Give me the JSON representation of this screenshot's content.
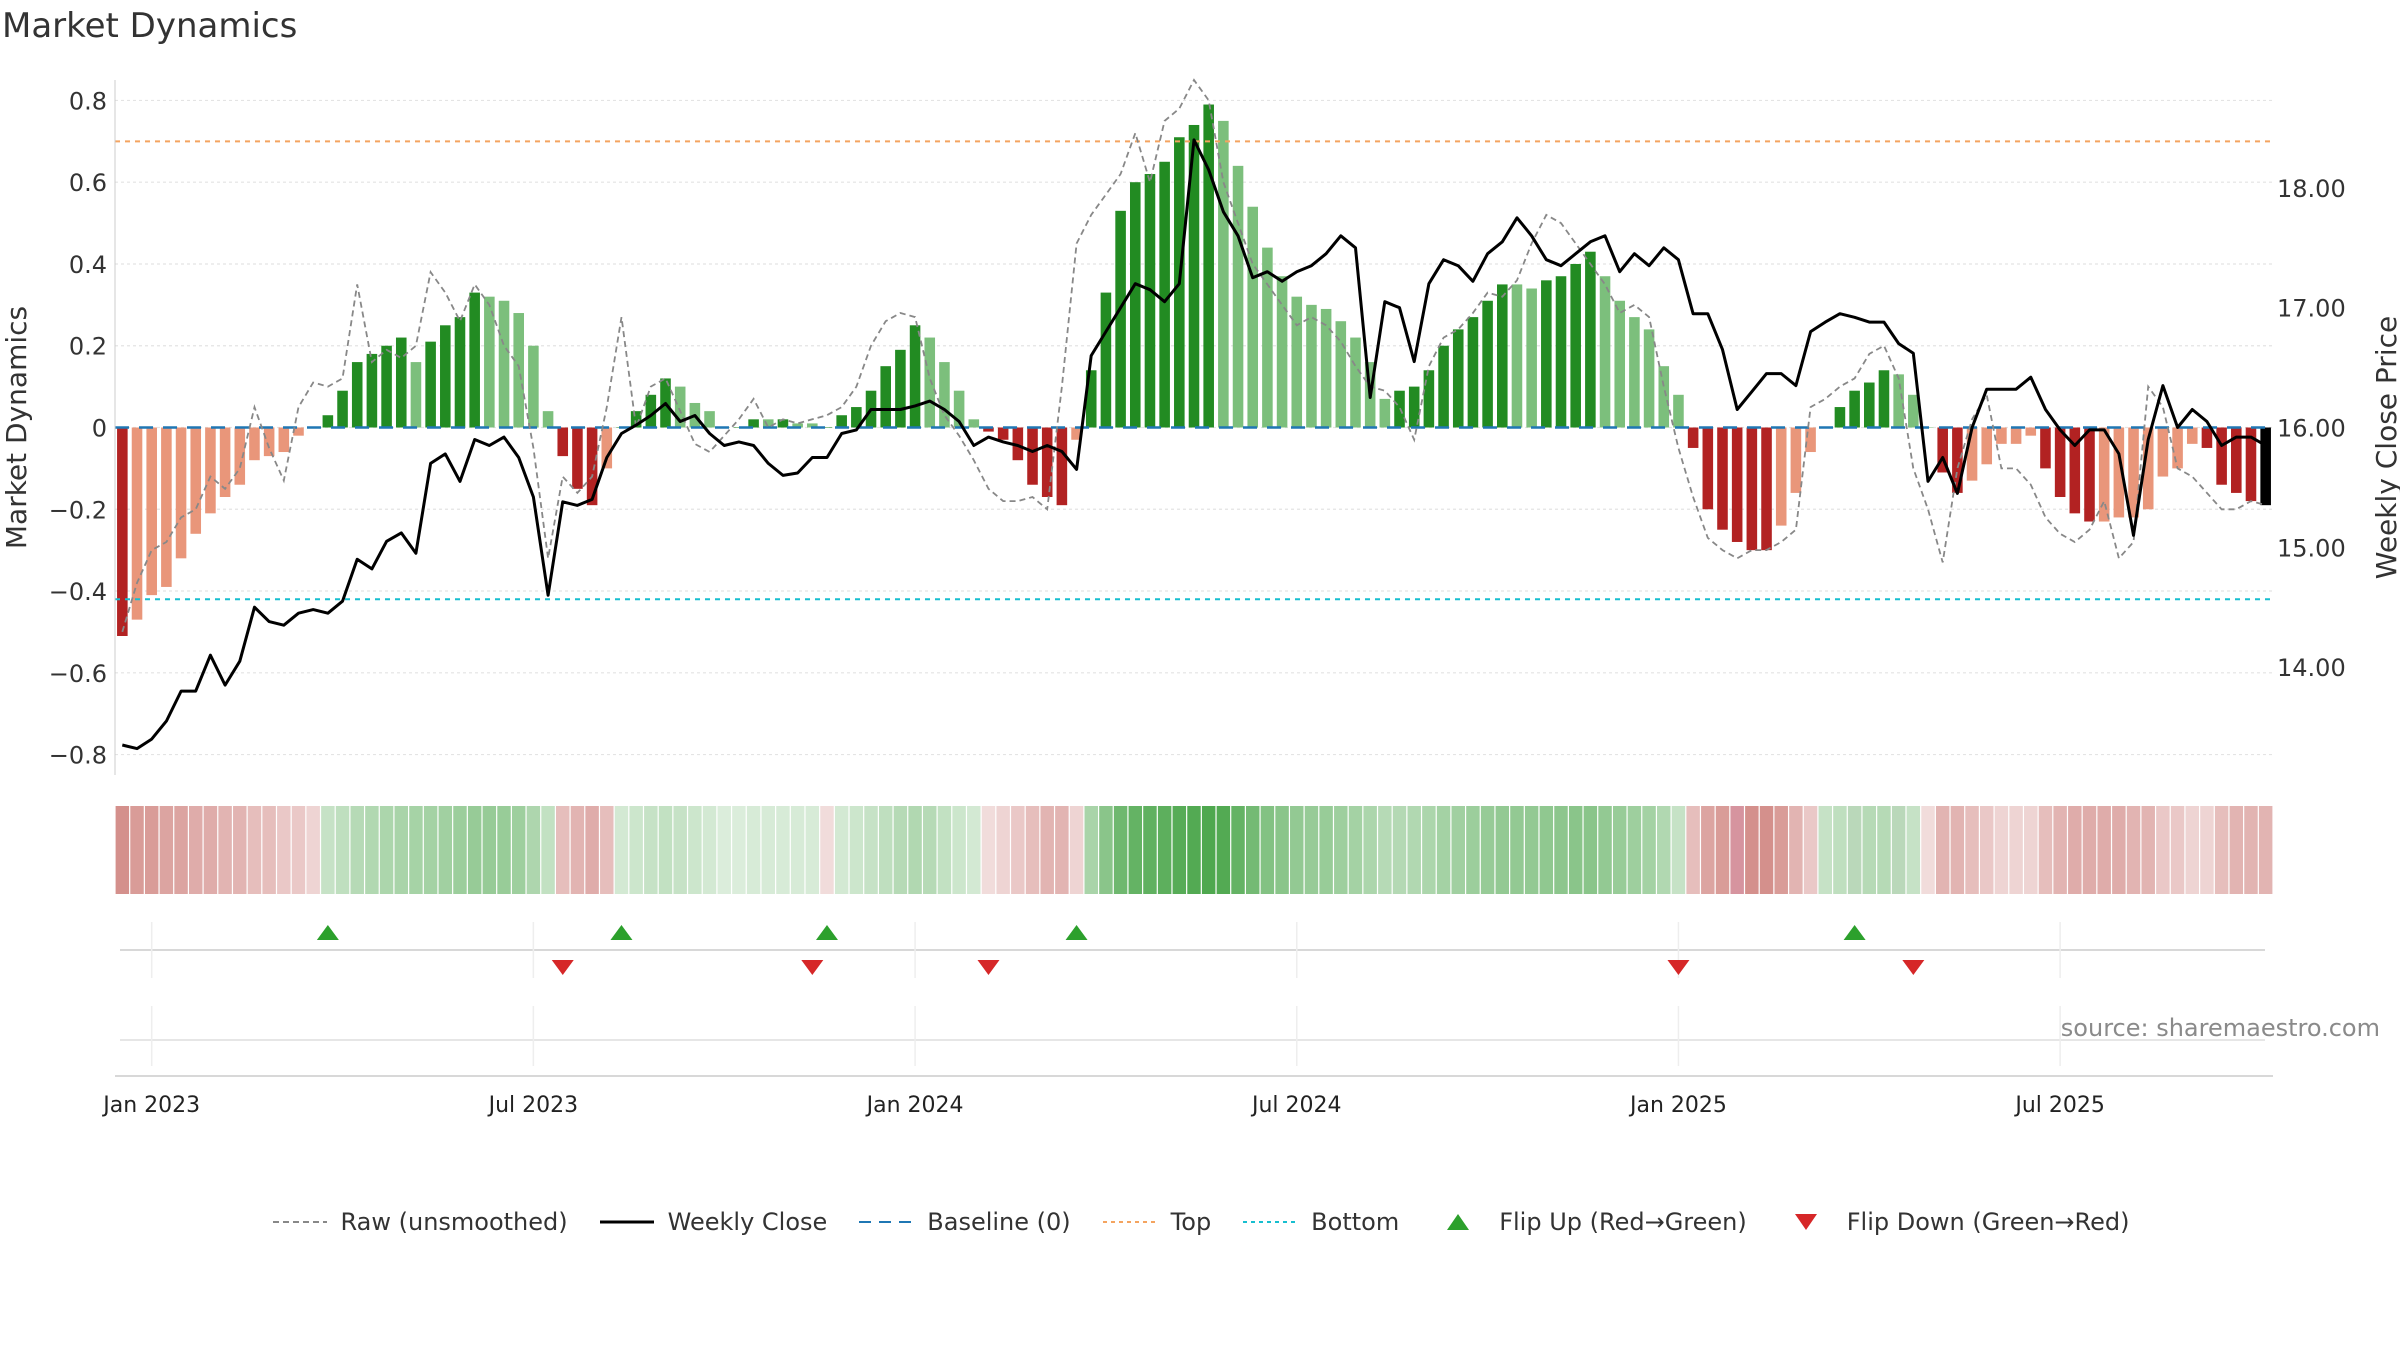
{
  "title": "Market Dynamics",
  "source": "source: sharemaestro.com",
  "chart_data": {
    "type": "bar",
    "ylabel_left": "Market Dynamics",
    "ylabel_right": "Weekly Close Price",
    "ylim_left": [
      -0.85,
      0.85
    ],
    "ylim_right": [
      13.1,
      18.9
    ],
    "yticks_left": [
      "−0.8",
      "−0.6",
      "−0.4",
      "−0.2",
      "0",
      "0.2",
      "0.4",
      "0.6",
      "0.8"
    ],
    "ytick_values_left": [
      -0.8,
      -0.6,
      -0.4,
      -0.2,
      0,
      0.2,
      0.4,
      0.6,
      0.8
    ],
    "yticks_right": [
      "14.00",
      "15.00",
      "16.00",
      "17.00",
      "18.00"
    ],
    "ytick_values_right": [
      14,
      15,
      16,
      17,
      18
    ],
    "xticks": [
      "Jan 2023",
      "Jul 2023",
      "Jan 2024",
      "Jul 2024",
      "Jan 2025",
      "Jul 2025"
    ],
    "xtick_week_index": [
      2,
      28,
      54,
      80,
      106,
      132
    ],
    "top_level": 0.7,
    "bottom_level": -0.42,
    "grid": true,
    "values": [
      -0.51,
      -0.47,
      -0.41,
      -0.39,
      -0.32,
      -0.26,
      -0.21,
      -0.17,
      -0.14,
      -0.08,
      -0.07,
      -0.06,
      -0.02,
      0,
      0.03,
      0.09,
      0.16,
      0.18,
      0.2,
      0.22,
      0.16,
      0.21,
      0.25,
      0.27,
      0.33,
      0.32,
      0.31,
      0.28,
      0.2,
      0.04,
      -0.07,
      -0.15,
      -0.19,
      -0.1,
      0,
      0.04,
      0.08,
      0.12,
      0.1,
      0.06,
      0.04,
      0,
      0,
      0.02,
      0.02,
      0.02,
      0.01,
      0.01,
      0,
      0.03,
      0.05,
      0.09,
      0.15,
      0.19,
      0.25,
      0.22,
      0.16,
      0.09,
      0.02,
      -0.01,
      -0.03,
      -0.08,
      -0.14,
      -0.17,
      -0.19,
      -0.03,
      0.14,
      0.33,
      0.53,
      0.6,
      0.62,
      0.65,
      0.71,
      0.74,
      0.79,
      0.75,
      0.64,
      0.54,
      0.44,
      0.37,
      0.32,
      0.3,
      0.29,
      0.26,
      0.22,
      0.16,
      0.07,
      0.09,
      0.1,
      0.14,
      0.2,
      0.24,
      0.27,
      0.31,
      0.35,
      0.35,
      0.34,
      0.36,
      0.37,
      0.4,
      0.43,
      0.37,
      0.31,
      0.27,
      0.24,
      0.15,
      0.08,
      -0.05,
      -0.2,
      -0.25,
      -0.28,
      -0.3,
      -0.3,
      -0.24,
      -0.16,
      -0.06,
      0,
      0.05,
      0.09,
      0.11,
      0.14,
      0.13,
      0.08,
      0,
      -0.11,
      -0.16,
      -0.13,
      -0.09,
      -0.04,
      -0.04,
      -0.02,
      -0.1,
      -0.17,
      -0.21,
      -0.23,
      -0.23,
      -0.22,
      -0.22,
      -0.2,
      -0.12,
      -0.1,
      -0.04,
      -0.05,
      -0.14,
      -0.16,
      -0.18,
      -0.19
    ],
    "bar_colors": [
      "#B22222",
      "#E9967A",
      "#E9967A",
      "#E9967A",
      "#E9967A",
      "#E9967A",
      "#E9967A",
      "#E9967A",
      "#E9967A",
      "#E9967A",
      "#E9967A",
      "#E9967A",
      "#E9967A",
      "#E9967A",
      "#228B22",
      "#228B22",
      "#228B22",
      "#228B22",
      "#228B22",
      "#228B22",
      "#7CBF7C",
      "#228B22",
      "#228B22",
      "#228B22",
      "#228B22",
      "#7CBF7C",
      "#7CBF7C",
      "#7CBF7C",
      "#7CBF7C",
      "#7CBF7C",
      "#B22222",
      "#B22222",
      "#B22222",
      "#E9967A",
      "#228B22",
      "#228B22",
      "#228B22",
      "#228B22",
      "#7CBF7C",
      "#7CBF7C",
      "#7CBF7C",
      "#7CBF7C",
      "#228B22",
      "#228B22",
      "#7CBF7C",
      "#228B22",
      "#7CBF7C",
      "#7CBF7C",
      "#228B22",
      "#228B22",
      "#228B22",
      "#228B22",
      "#228B22",
      "#228B22",
      "#228B22",
      "#7CBF7C",
      "#7CBF7C",
      "#7CBF7C",
      "#7CBF7C",
      "#B22222",
      "#B22222",
      "#B22222",
      "#B22222",
      "#B22222",
      "#B22222",
      "#E9967A",
      "#228B22",
      "#228B22",
      "#228B22",
      "#228B22",
      "#228B22",
      "#228B22",
      "#228B22",
      "#228B22",
      "#228B22",
      "#7CBF7C",
      "#7CBF7C",
      "#7CBF7C",
      "#7CBF7C",
      "#7CBF7C",
      "#7CBF7C",
      "#7CBF7C",
      "#7CBF7C",
      "#7CBF7C",
      "#7CBF7C",
      "#7CBF7C",
      "#7CBF7C",
      "#228B22",
      "#228B22",
      "#228B22",
      "#228B22",
      "#228B22",
      "#228B22",
      "#228B22",
      "#228B22",
      "#7CBF7C",
      "#7CBF7C",
      "#228B22",
      "#228B22",
      "#228B22",
      "#228B22",
      "#7CBF7C",
      "#7CBF7C",
      "#7CBF7C",
      "#7CBF7C",
      "#7CBF7C",
      "#7CBF7C",
      "#B22222",
      "#B22222",
      "#B22222",
      "#B22222",
      "#B22222",
      "#B22222",
      "#E9967A",
      "#E9967A",
      "#E9967A",
      "#228B22",
      "#228B22",
      "#228B22",
      "#228B22",
      "#228B22",
      "#7CBF7C",
      "#7CBF7C",
      "#7CBF7C",
      "#B22222",
      "#B22222",
      "#E9967A",
      "#E9967A",
      "#E9967A",
      "#E9967A",
      "#E9967A",
      "#B22222",
      "#B22222",
      "#B22222",
      "#B22222",
      "#E9967A",
      "#E9967A",
      "#E9967A",
      "#E9967A",
      "#E9967A",
      "#E9967A",
      "#E9967A",
      "#B22222",
      "#B22222",
      "#B22222",
      "#B22222"
    ],
    "raw": [
      -0.5,
      -0.38,
      -0.3,
      -0.28,
      -0.22,
      -0.2,
      -0.12,
      -0.15,
      -0.1,
      0.05,
      -0.05,
      -0.13,
      0.05,
      0.11,
      0.1,
      0.12,
      0.35,
      0.16,
      0.19,
      0.17,
      0.2,
      0.38,
      0.33,
      0.26,
      0.35,
      0.3,
      0.2,
      0.15,
      -0.05,
      -0.32,
      -0.12,
      -0.16,
      -0.12,
      0.05,
      0.27,
      0,
      0.1,
      0.12,
      0.04,
      -0.04,
      -0.06,
      -0.02,
      0.02,
      0.07,
      0,
      0.02,
      0.01,
      0.02,
      0.03,
      0.05,
      0.1,
      0.2,
      0.26,
      0.28,
      0.27,
      0.12,
      0.03,
      -0.02,
      -0.08,
      -0.15,
      -0.18,
      -0.18,
      -0.17,
      -0.2,
      0.1,
      0.45,
      0.52,
      0.57,
      0.62,
      0.72,
      0.6,
      0.75,
      0.78,
      0.85,
      0.8,
      0.6,
      0.5,
      0.4,
      0.35,
      0.3,
      0.25,
      0.27,
      0.25,
      0.21,
      0.15,
      0.1,
      0.09,
      0.05,
      -0.03,
      0.15,
      0.22,
      0.24,
      0.28,
      0.33,
      0.32,
      0.36,
      0.45,
      0.52,
      0.5,
      0.45,
      0.4,
      0.35,
      0.28,
      0.3,
      0.27,
      0.1,
      -0.05,
      -0.17,
      -0.27,
      -0.3,
      -0.32,
      -0.3,
      -0.3,
      -0.28,
      -0.25,
      0.05,
      0.07,
      0.1,
      0.12,
      0.18,
      0.2,
      0.12,
      -0.1,
      -0.2,
      -0.33,
      -0.1,
      0.02,
      0.08,
      -0.1,
      -0.1,
      -0.14,
      -0.22,
      -0.26,
      -0.28,
      -0.25,
      -0.18,
      -0.32,
      -0.28,
      0.1,
      0.05,
      -0.1,
      -0.12,
      -0.16,
      -0.2,
      -0.2,
      -0.18,
      -0.19
    ],
    "close": [
      13.35,
      13.32,
      13.4,
      13.55,
      13.8,
      13.8,
      14.1,
      13.85,
      14.05,
      14.5,
      14.38,
      14.35,
      14.45,
      14.48,
      14.45,
      14.55,
      14.9,
      14.82,
      15.05,
      15.12,
      14.95,
      15.7,
      15.78,
      15.55,
      15.9,
      15.85,
      15.92,
      15.75,
      15.42,
      14.6,
      15.38,
      15.35,
      15.4,
      15.75,
      15.95,
      16.02,
      16.1,
      16.2,
      16.05,
      16.1,
      15.95,
      15.85,
      15.88,
      15.85,
      15.7,
      15.6,
      15.62,
      15.75,
      15.75,
      15.95,
      15.98,
      16.15,
      16.15,
      16.15,
      16.18,
      16.22,
      16.15,
      16.05,
      15.85,
      15.92,
      15.88,
      15.85,
      15.8,
      15.85,
      15.8,
      15.65,
      16.6,
      16.8,
      17.0,
      17.2,
      17.15,
      17.05,
      17.2,
      18.4,
      18.15,
      17.8,
      17.6,
      17.25,
      17.3,
      17.22,
      17.3,
      17.35,
      17.45,
      17.6,
      17.5,
      16.25,
      17.05,
      17.0,
      16.55,
      17.2,
      17.4,
      17.35,
      17.22,
      17.45,
      17.55,
      17.75,
      17.6,
      17.4,
      17.35,
      17.45,
      17.55,
      17.6,
      17.3,
      17.45,
      17.35,
      17.5,
      17.4,
      16.95,
      16.95,
      16.65,
      16.15,
      16.3,
      16.45,
      16.45,
      16.35,
      16.8,
      16.88,
      16.95,
      16.92,
      16.88,
      16.88,
      16.7,
      16.62,
      15.55,
      15.75,
      15.45,
      16.0,
      16.32,
      16.32,
      16.32,
      16.42,
      16.15,
      15.98,
      15.85,
      15.98,
      15.98,
      15.78,
      15.1,
      15.9,
      16.35,
      16.0,
      16.15,
      16.05,
      15.85,
      15.92,
      15.92,
      15.85
    ],
    "regime_strip": [
      "#D4908C",
      "#D99C98",
      "#D99C98",
      "#DCA4A1",
      "#DCA4A1",
      "#DFACAA",
      "#DFACAA",
      "#E2B4B2",
      "#E2B4B2",
      "#E6BEBC",
      "#E6BEBC",
      "#EAC8C7",
      "#EAC8C7",
      "#EED4D3",
      "#C6E2C6",
      "#BFDFBF",
      "#B6DAB6",
      "#B1D8B1",
      "#ACD6AC",
      "#A9D4A9",
      "#A6D3A6",
      "#A4D2A4",
      "#A1D0A1",
      "#9CCE9C",
      "#97CB97",
      "#97CB97",
      "#98CC98",
      "#9ECF9E",
      "#AED6AE",
      "#C2E1C2",
      "#E6BEBC",
      "#E2B4B2",
      "#DFACAA",
      "#E6BEBC",
      "#D3E9D3",
      "#CCE6CC",
      "#C6E2C6",
      "#C2E1C2",
      "#C6E2C6",
      "#CCE6CC",
      "#D3E9D3",
      "#DBEDDB",
      "#DBEDDB",
      "#D7EBD7",
      "#D7EBD7",
      "#D7EBD7",
      "#D7EBD7",
      "#D7EBD7",
      "#F1DCDB",
      "#D3E9D3",
      "#CCE6CC",
      "#C6E2C6",
      "#BFDFBF",
      "#B6DAB6",
      "#B1D8B1",
      "#B6DAB6",
      "#C2E1C2",
      "#CCE6CC",
      "#D3E9D3",
      "#F1DCDB",
      "#EED4D3",
      "#EAC8C7",
      "#E6BEBC",
      "#E2B4B2",
      "#E2B4B2",
      "#EED4D3",
      "#A9D4A9",
      "#8AC58A",
      "#6FB86F",
      "#64B364",
      "#60B160",
      "#5DAF5D",
      "#57AC57",
      "#53AA53",
      "#4FA84F",
      "#53AA53",
      "#64B364",
      "#74BA74",
      "#83C283",
      "#8AC58A",
      "#93C993",
      "#97CB97",
      "#98CC98",
      "#9ECF9E",
      "#A4D2A4",
      "#ACD6AC",
      "#B6DAB6",
      "#B4D9B4",
      "#B1D8B1",
      "#ACD6AC",
      "#A4D2A4",
      "#A1D0A1",
      "#9CCE9C",
      "#97CB97",
      "#93C993",
      "#93C993",
      "#93C993",
      "#90C890",
      "#8DC68D",
      "#8AC58A",
      "#8AC58A",
      "#93C993",
      "#98CC98",
      "#9ECF9E",
      "#A4D2A4",
      "#B1D8B1",
      "#C6E2C6",
      "#E6BEBC",
      "#DCA4A1",
      "#D99C98",
      "#D6949F",
      "#D4908C",
      "#D4908C",
      "#D99C98",
      "#E2B4B2",
      "#EAC8C7",
      "#C6E2C6",
      "#BFDFBF",
      "#BAD8BA",
      "#B6DAB6",
      "#B6DAB6",
      "#BAD8BA",
      "#C6E2C6",
      "#F1DCDB",
      "#E2B4B2",
      "#E2B4B2",
      "#E6BEBC",
      "#EAC8C7",
      "#EED4D3",
      "#EED4D3",
      "#EED4D3",
      "#E6BEBC",
      "#E2B4B2",
      "#DFACAA",
      "#DFACAA",
      "#DFACAA",
      "#DFACAA",
      "#E2B4B2",
      "#E2B4B2",
      "#EAC8C7",
      "#EAC8C7",
      "#EED4D3",
      "#EED4D3",
      "#E6BEBC",
      "#E2B4B2",
      "#E2B4B2",
      "#E2B4B2"
    ],
    "flip_up_weeks": [
      14,
      34,
      48,
      65,
      118
    ],
    "flip_down_weeks": [
      30,
      47,
      59,
      106,
      122
    ],
    "legend": [
      {
        "label": "Raw (unsmoothed)",
        "style": "dashed",
        "color": "#888888"
      },
      {
        "label": "Weekly Close",
        "style": "solid",
        "color": "#000000"
      },
      {
        "label": "Baseline (0)",
        "style": "dashed",
        "color": "#1f77b4"
      },
      {
        "label": "Top",
        "style": "dotted",
        "color": "#f4a460"
      },
      {
        "label": "Bottom",
        "style": "dotted",
        "color": "#17becf"
      },
      {
        "label": "Flip Up (Red→Green)",
        "style": "triangle-up",
        "color": "#2ca02c"
      },
      {
        "label": "Flip Down (Green→Red)",
        "style": "triangle-down",
        "color": "#d62728"
      }
    ]
  }
}
